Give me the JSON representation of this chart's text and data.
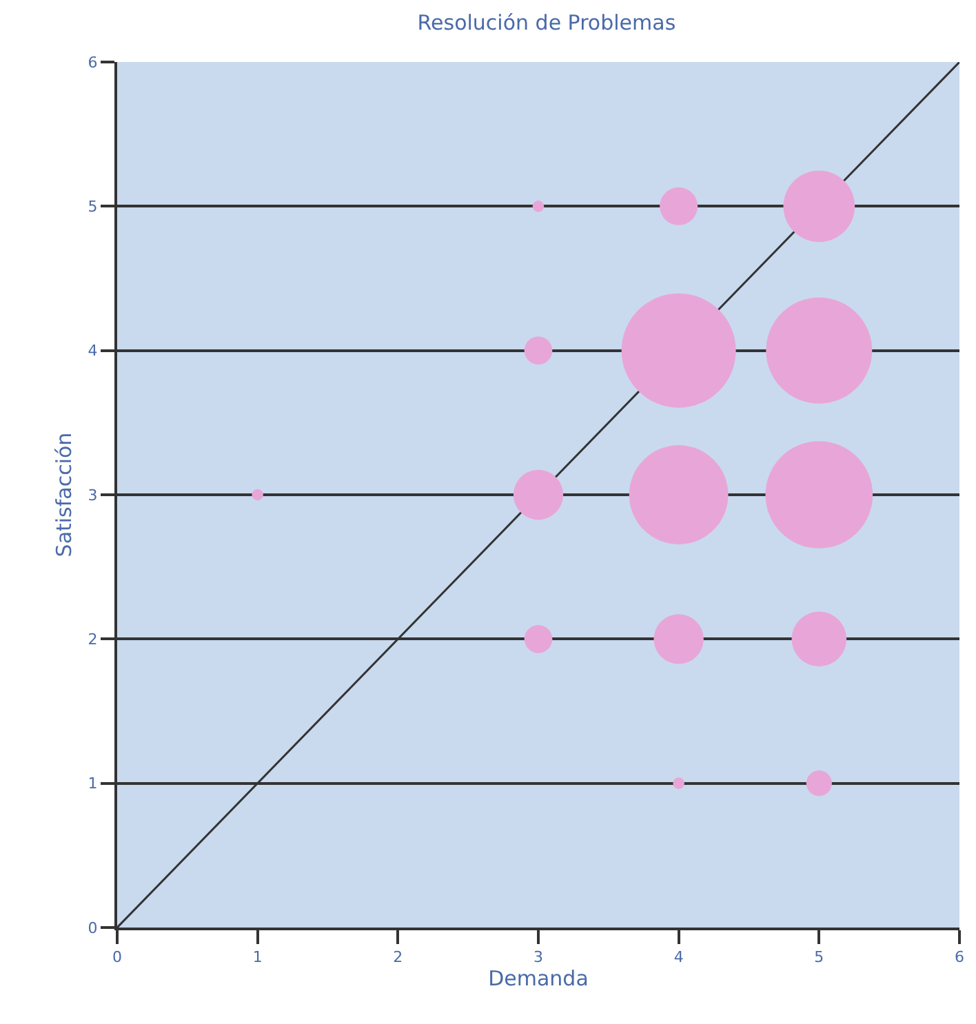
{
  "chart_data": {
    "type": "bubble",
    "title": "Resolución de Problemas",
    "xlabel": "Demanda",
    "ylabel": "Satisfacción",
    "xlim": [
      0,
      6
    ],
    "ylim": [
      0,
      6
    ],
    "xticks": [
      0,
      1,
      2,
      3,
      4,
      5,
      6
    ],
    "yticks": [
      0,
      1,
      2,
      3,
      4,
      5,
      6
    ],
    "grid": "y",
    "series": [
      {
        "color": "#e8a6d8",
        "x": [
          3,
          4,
          5,
          3,
          4,
          5,
          1,
          3,
          4,
          5,
          3,
          4,
          5,
          4,
          5
        ],
        "values": [
          5,
          5,
          5,
          4,
          4,
          4,
          3,
          3,
          3,
          3,
          2,
          2,
          2,
          1,
          1
        ],
        "sizes": [
          0.01,
          0.11,
          0.39,
          0.06,
          1,
          0.86,
          0.01,
          0.19,
          0.75,
          0.88,
          0.06,
          0.19,
          0.23,
          0.01,
          0.05
        ]
      },
      {
        "type": "line",
        "color": "#333333",
        "x": [
          0,
          6
        ],
        "values": [
          0,
          6
        ]
      }
    ]
  }
}
